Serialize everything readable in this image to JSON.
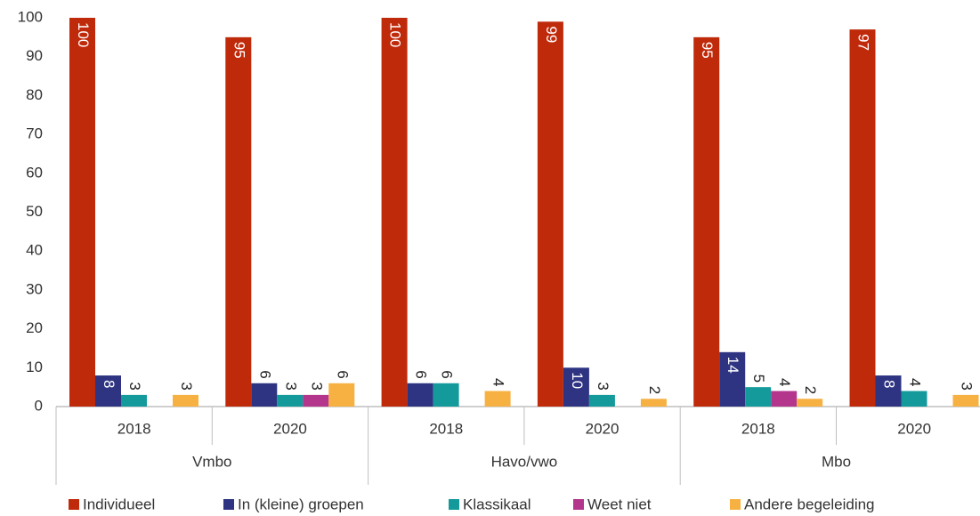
{
  "chart_data": {
    "type": "bar",
    "categories": [
      "2018",
      "2020",
      "2018",
      "2020",
      "2018",
      "2020"
    ],
    "groups": [
      "Vmbo",
      "Havo/vwo",
      "Mbo"
    ],
    "series": [
      {
        "name": "Individueel",
        "color": "#bf2a0b",
        "values": [
          100,
          95,
          100,
          99,
          95,
          97
        ]
      },
      {
        "name": "In (kleine) groepen",
        "color": "#2e3482",
        "values": [
          8,
          6,
          6,
          10,
          14,
          8
        ]
      },
      {
        "name": "Klassikaal",
        "color": "#149a9b",
        "values": [
          3,
          3,
          6,
          3,
          5,
          4
        ]
      },
      {
        "name": "Weet niet",
        "color": "#b3358c",
        "values": [
          null,
          3,
          null,
          null,
          4,
          null
        ]
      },
      {
        "name": "Andere begeleiding",
        "color": "#f7b143",
        "values": [
          3,
          6,
          4,
          2,
          2,
          3
        ]
      }
    ],
    "ylim": [
      0,
      100
    ],
    "yticks": [
      0,
      10,
      20,
      30,
      40,
      50,
      60,
      70,
      80,
      90,
      100
    ]
  }
}
